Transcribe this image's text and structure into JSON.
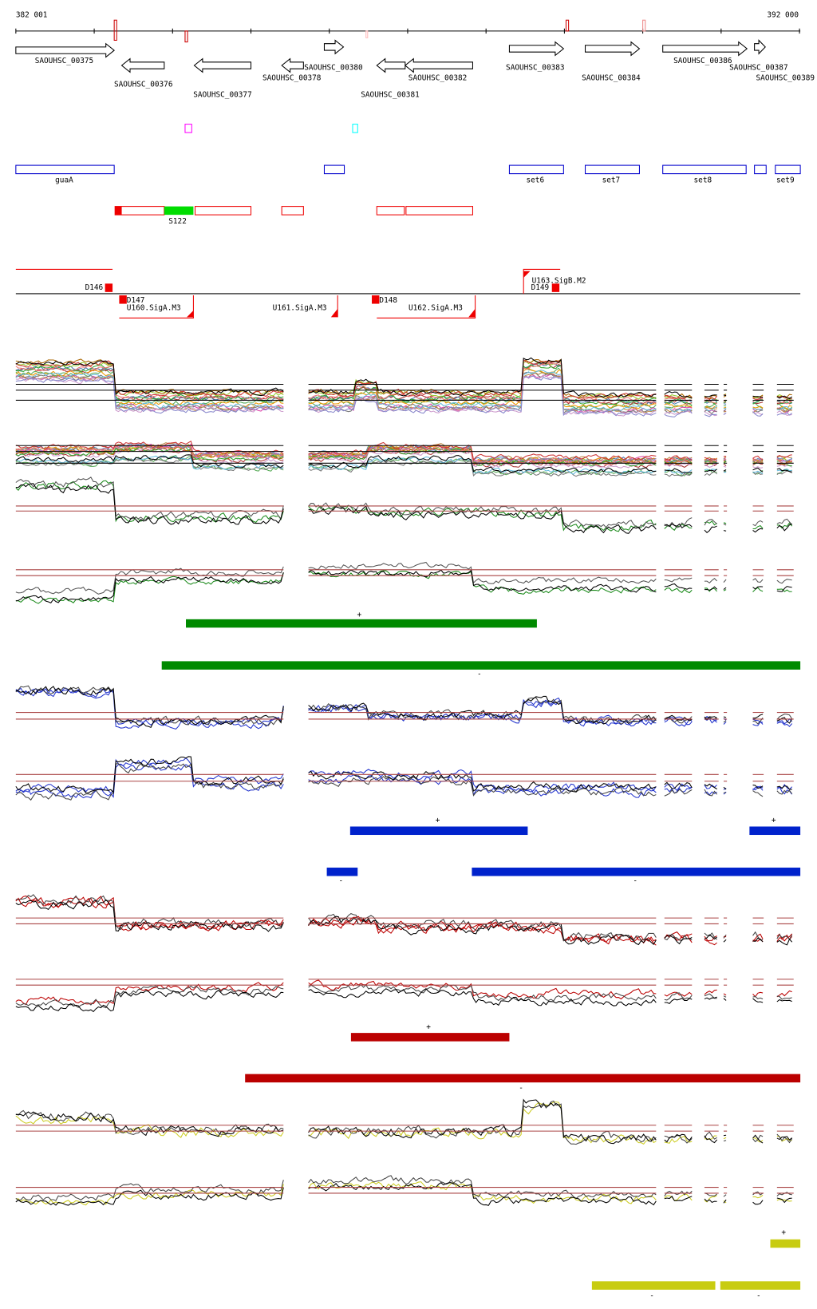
{
  "ruler": {
    "start": "382 001",
    "end": "392 000"
  },
  "genes": [
    "SAOUHSC_00375",
    "SAOUHSC_00376",
    "SAOUHSC_00377",
    "SAOUHSC_00378",
    "SAOUHSC_00380",
    "SAOUHSC_00381",
    "SAOUHSC_00382",
    "SAOUHSC_00383",
    "SAOUHSC_00384",
    "SAOUHSC_00386",
    "SAOUHSC_00387",
    "SAOUHSC_00389"
  ],
  "annotations": [
    "guaA",
    "set6",
    "set7",
    "set8",
    "set9"
  ],
  "segments": [
    "S122"
  ],
  "promoters": [
    "D146",
    "D147",
    "U160.SigA.M3",
    "U161.SigA.M3",
    "D148",
    "U162.SigA.M3",
    "U163.SigB.M2",
    "D149"
  ],
  "strand_marks": [
    "+",
    "-",
    "+",
    "+",
    "-",
    "-",
    "+",
    "-",
    "+",
    "-",
    "-"
  ]
}
